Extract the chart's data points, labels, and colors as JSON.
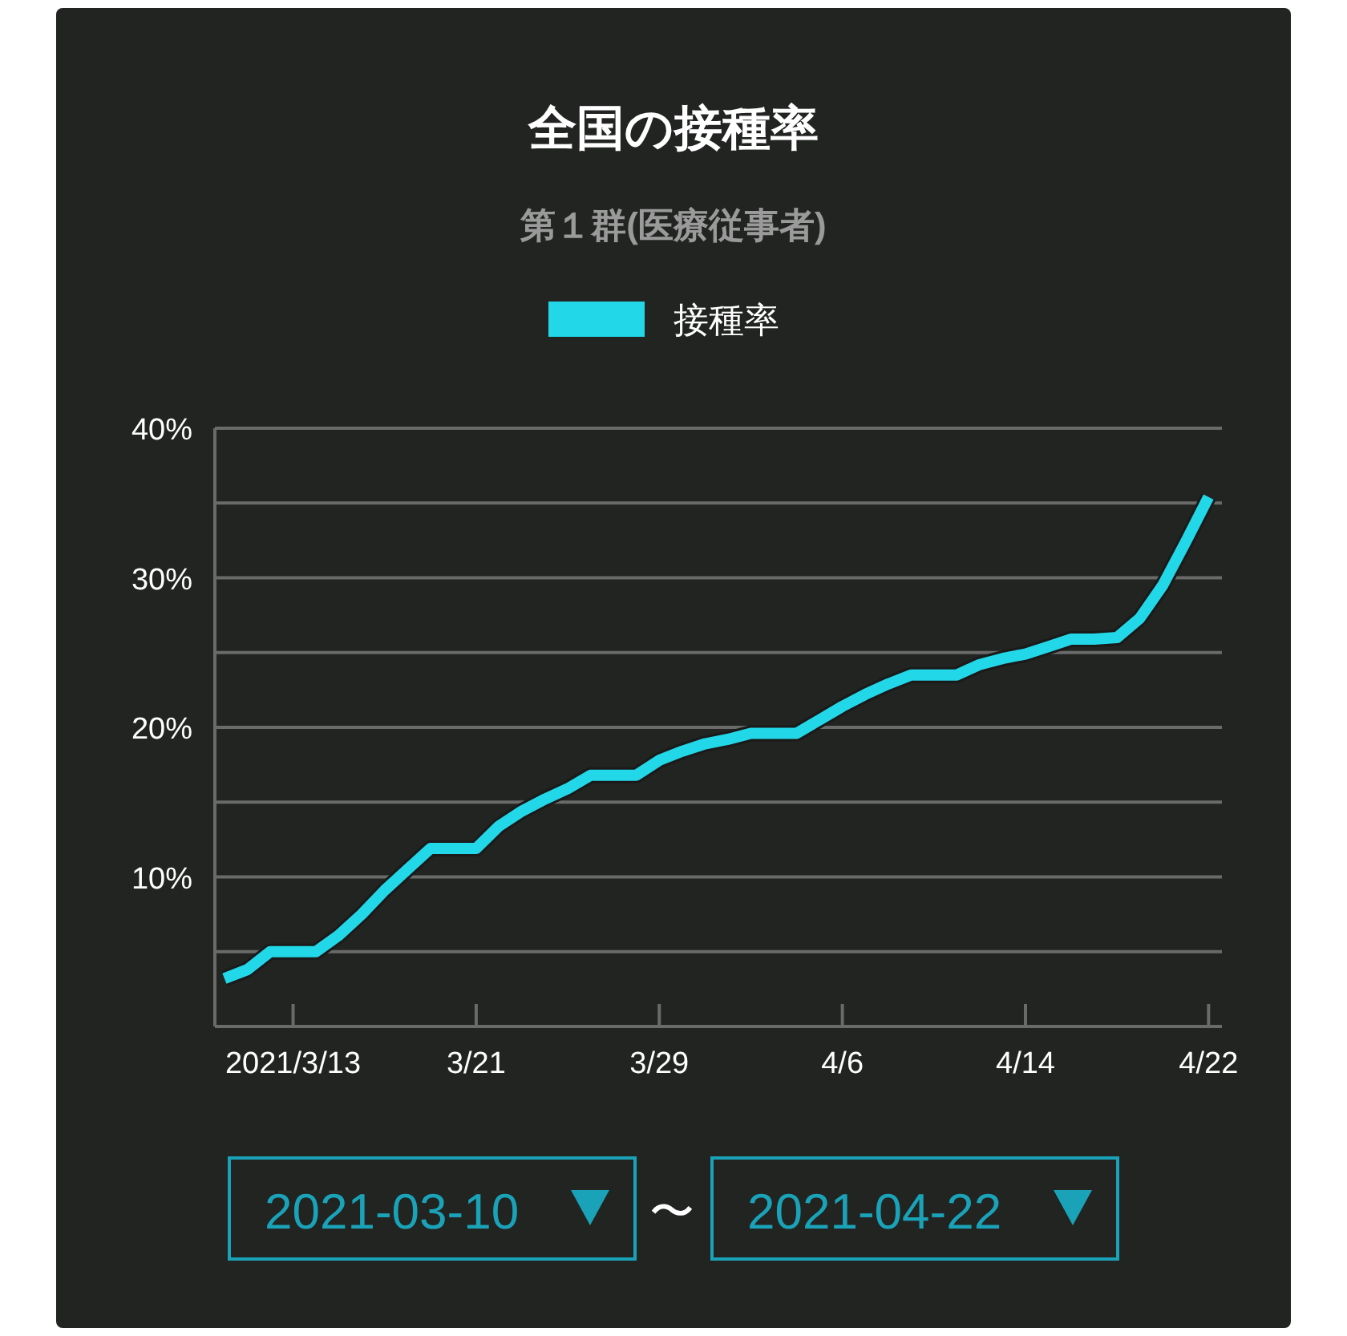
{
  "chart_data": {
    "type": "line",
    "title": "全国の接種率",
    "subtitle": "第１群(医療従事者)",
    "x": [
      "2021-03-10",
      "2021-03-11",
      "2021-03-12",
      "2021-03-13",
      "2021-03-14",
      "2021-03-15",
      "2021-03-16",
      "2021-03-17",
      "2021-03-18",
      "2021-03-19",
      "2021-03-20",
      "2021-03-21",
      "2021-03-22",
      "2021-03-23",
      "2021-03-24",
      "2021-03-25",
      "2021-03-26",
      "2021-03-27",
      "2021-03-28",
      "2021-03-29",
      "2021-03-30",
      "2021-03-31",
      "2021-04-01",
      "2021-04-02",
      "2021-04-03",
      "2021-04-04",
      "2021-04-05",
      "2021-04-06",
      "2021-04-07",
      "2021-04-08",
      "2021-04-09",
      "2021-04-10",
      "2021-04-11",
      "2021-04-12",
      "2021-04-13",
      "2021-04-14",
      "2021-04-15",
      "2021-04-16",
      "2021-04-17",
      "2021-04-18",
      "2021-04-19",
      "2021-04-20",
      "2021-04-21",
      "2021-04-22"
    ],
    "series": [
      {
        "name": "接種率",
        "color": "#22d8e8",
        "values": [
          3.2,
          3.8,
          5.0,
          5.0,
          5.0,
          6.1,
          7.5,
          9.1,
          10.5,
          11.9,
          11.9,
          11.9,
          13.4,
          14.4,
          15.2,
          15.9,
          16.8,
          16.8,
          16.8,
          17.8,
          18.4,
          18.9,
          19.2,
          19.6,
          19.6,
          19.6,
          20.5,
          21.4,
          22.2,
          22.9,
          23.5,
          23.5,
          23.5,
          24.2,
          24.6,
          24.9,
          25.4,
          25.9,
          25.9,
          26.0,
          27.3,
          29.5,
          32.4,
          35.4
        ]
      }
    ],
    "xlim": [
      "2021-03-09T14:00",
      "2021-04-22T14:00"
    ],
    "xticks": [
      {
        "value": "2021-03-13",
        "label": "2021/3/13"
      },
      {
        "value": "2021-03-21",
        "label": "3/21"
      },
      {
        "value": "2021-03-29",
        "label": "3/29"
      },
      {
        "value": "2021-04-06",
        "label": "4/6"
      },
      {
        "value": "2021-04-14",
        "label": "4/14"
      },
      {
        "value": "2021-04-22",
        "label": "4/22"
      }
    ],
    "ylim": [
      0,
      40
    ],
    "yticks": [
      {
        "value": 0,
        "label": null
      },
      {
        "value": 5,
        "label": null
      },
      {
        "value": 10,
        "label": "10%"
      },
      {
        "value": 15,
        "label": null
      },
      {
        "value": 20,
        "label": "20%"
      },
      {
        "value": 25,
        "label": null
      },
      {
        "value": 30,
        "label": "30%"
      },
      {
        "value": 35,
        "label": null
      },
      {
        "value": 40,
        "label": "40%"
      }
    ],
    "grid": "y",
    "legend": "top",
    "annotations": [
      "2021-03-10",
      "〜",
      "2021-04-22"
    ]
  }
}
